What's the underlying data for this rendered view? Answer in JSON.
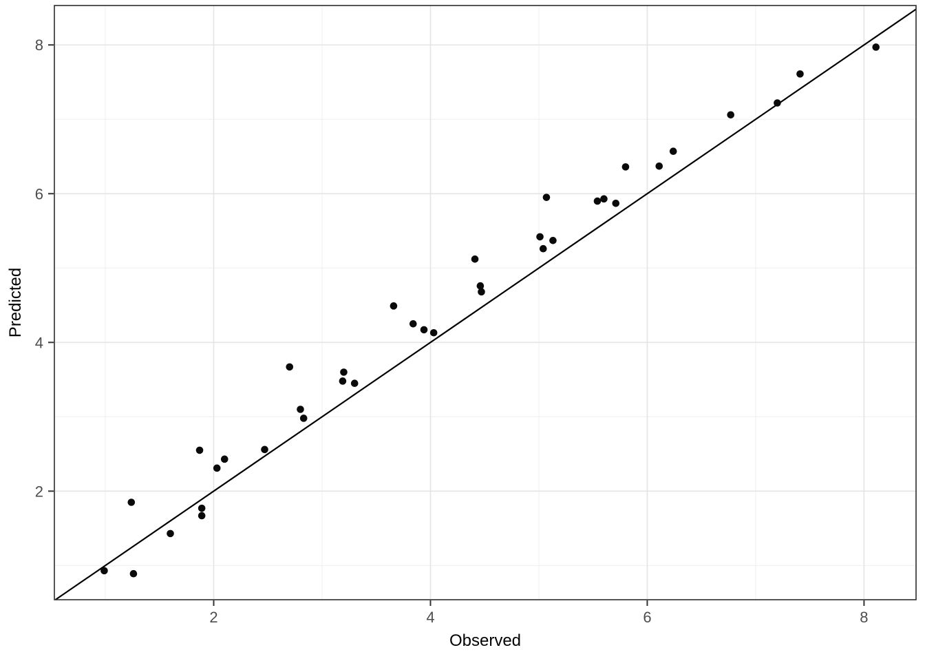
{
  "chart_data": {
    "type": "scatter",
    "title": "",
    "xlabel": "Observed",
    "ylabel": "Predicted",
    "xlim": [
      0.53,
      8.48
    ],
    "ylim": [
      0.54,
      8.53
    ],
    "x_major_ticks": [
      2,
      4,
      6,
      8
    ],
    "y_major_ticks": [
      2,
      4,
      6,
      8
    ],
    "x_minor_gridlines": [
      1,
      3,
      5,
      7
    ],
    "y_minor_gridlines": [
      1,
      3,
      5,
      7
    ],
    "grid": "on",
    "legend": "none",
    "reference_line": {
      "type": "identity",
      "equation": "y = x"
    },
    "points": [
      [
        0.99,
        0.93
      ],
      [
        1.26,
        0.89
      ],
      [
        1.24,
        1.85
      ],
      [
        1.6,
        1.43
      ],
      [
        1.87,
        2.55
      ],
      [
        1.89,
        1.77
      ],
      [
        1.89,
        1.67
      ],
      [
        2.03,
        2.31
      ],
      [
        2.1,
        2.43
      ],
      [
        2.47,
        2.56
      ],
      [
        2.7,
        3.67
      ],
      [
        2.8,
        3.1
      ],
      [
        2.83,
        2.98
      ],
      [
        3.19,
        3.48
      ],
      [
        3.2,
        3.6
      ],
      [
        3.3,
        3.45
      ],
      [
        3.66,
        4.49
      ],
      [
        3.84,
        4.25
      ],
      [
        3.94,
        4.17
      ],
      [
        4.03,
        4.13
      ],
      [
        4.41,
        5.12
      ],
      [
        4.46,
        4.76
      ],
      [
        4.47,
        4.68
      ],
      [
        5.01,
        5.42
      ],
      [
        5.04,
        5.26
      ],
      [
        5.07,
        5.95
      ],
      [
        5.13,
        5.37
      ],
      [
        5.54,
        5.9
      ],
      [
        5.6,
        5.93
      ],
      [
        5.71,
        5.87
      ],
      [
        5.8,
        6.36
      ],
      [
        6.11,
        6.37
      ],
      [
        6.24,
        6.57
      ],
      [
        6.77,
        7.06
      ],
      [
        7.2,
        7.22
      ],
      [
        7.41,
        7.61
      ],
      [
        8.11,
        7.97
      ]
    ],
    "colors": {
      "background": "#ffffff",
      "panel_background": "#ffffff",
      "panel_border": "#2b2b2b",
      "grid_major": "#e4e4e4",
      "grid_minor": "#efefef",
      "tick_mark": "#333333",
      "tick_label": "#4d4d4d",
      "axis_title": "#000000",
      "point": "#0a0a0a",
      "line": "#000000"
    }
  }
}
